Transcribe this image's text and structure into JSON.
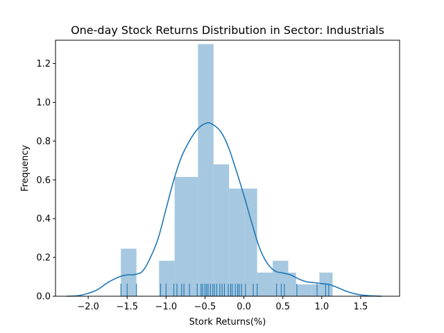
{
  "chart_data": {
    "type": "histogram",
    "title": "One-day Stock Returns Distribution in Sector: Industrials",
    "xlabel": "Stork Returns(%)",
    "ylabel": "Frequency",
    "xlim": [
      -2.42,
      2.0
    ],
    "ylim": [
      0,
      1.32
    ],
    "x_ticks": [
      -2.0,
      -1.5,
      -1.0,
      -0.5,
      0.0,
      0.5,
      1.0,
      1.5
    ],
    "x_tick_labels": [
      "−2.0",
      "−1.5",
      "−1.0",
      "−0.5",
      "0.0",
      "0.5",
      "1.0",
      "1.5"
    ],
    "y_ticks": [
      0.0,
      0.2,
      0.4,
      0.6,
      0.8,
      1.0,
      1.2
    ],
    "y_tick_labels": [
      "0.0",
      "0.2",
      "0.4",
      "0.6",
      "0.8",
      "1.0",
      "1.2"
    ],
    "bin_edges": [
      -1.58,
      -1.48,
      -1.38,
      -1.09,
      -0.99,
      -0.89,
      -0.59,
      -0.49,
      -0.39,
      -0.19,
      -0.09,
      0.01,
      0.17,
      0.27,
      0.37,
      0.57,
      0.67,
      0.87,
      0.97,
      1.07,
      1.14
    ],
    "bins": [
      {
        "x0": -1.58,
        "x1": -1.38,
        "height": 0.245
      },
      {
        "x0": -1.09,
        "x1": -0.89,
        "height": 0.183
      },
      {
        "x0": -0.89,
        "x1": -0.59,
        "height": 0.615
      },
      {
        "x0": -0.59,
        "x1": -0.39,
        "height": 1.3
      },
      {
        "x0": -0.39,
        "x1": -0.19,
        "height": 0.68
      },
      {
        "x0": -0.19,
        "x1": 0.01,
        "height": 0.555
      },
      {
        "x0": 0.01,
        "x1": 0.17,
        "height": 0.555
      },
      {
        "x0": 0.17,
        "x1": 0.37,
        "height": 0.122
      },
      {
        "x0": 0.37,
        "x1": 0.57,
        "height": 0.183
      },
      {
        "x0": 0.57,
        "x1": 0.67,
        "height": 0.122
      },
      {
        "x0": 0.67,
        "x1": 0.87,
        "height": 0.061
      },
      {
        "x0": 0.87,
        "x1": 0.97,
        "height": 0.061
      },
      {
        "x0": 0.97,
        "x1": 1.07,
        "height": 0.122
      },
      {
        "x0": 1.07,
        "x1": 1.14,
        "height": 0.122
      }
    ],
    "kde": {
      "x": [
        -2.28,
        -2.1,
        -1.9,
        -1.75,
        -1.6,
        -1.5,
        -1.4,
        -1.3,
        -1.2,
        -1.1,
        -1.0,
        -0.9,
        -0.8,
        -0.7,
        -0.6,
        -0.5,
        -0.42,
        -0.3,
        -0.2,
        -0.1,
        0.0,
        0.1,
        0.2,
        0.3,
        0.4,
        0.5,
        0.6,
        0.7,
        0.8,
        0.9,
        1.0,
        1.1,
        1.2,
        1.3,
        1.4,
        1.5,
        1.6,
        1.77
      ],
      "y": [
        0.0,
        0.005,
        0.03,
        0.07,
        0.1,
        0.11,
        0.112,
        0.13,
        0.2,
        0.3,
        0.45,
        0.6,
        0.72,
        0.8,
        0.86,
        0.89,
        0.89,
        0.85,
        0.77,
        0.65,
        0.52,
        0.38,
        0.25,
        0.17,
        0.13,
        0.12,
        0.11,
        0.09,
        0.075,
        0.07,
        0.065,
        0.06,
        0.045,
        0.028,
        0.015,
        0.007,
        0.003,
        0.0
      ]
    },
    "rug": [
      -1.58,
      -1.5,
      -1.38,
      -1.07,
      -1.0,
      -0.9,
      -0.86,
      -0.8,
      -0.77,
      -0.7,
      -0.6,
      -0.55,
      -0.53,
      -0.5,
      -0.48,
      -0.46,
      -0.43,
      -0.4,
      -0.38,
      -0.35,
      -0.31,
      -0.28,
      -0.25,
      -0.2,
      -0.17,
      -0.15,
      -0.11,
      -0.08,
      -0.06,
      -0.03,
      0.02,
      0.12,
      0.17,
      0.42,
      0.48,
      0.52,
      0.68,
      0.94,
      1.05,
      1.09
    ],
    "colors": {
      "bar": "#a6c8e0",
      "line": "#1f77b4",
      "axis": "#000000"
    }
  }
}
